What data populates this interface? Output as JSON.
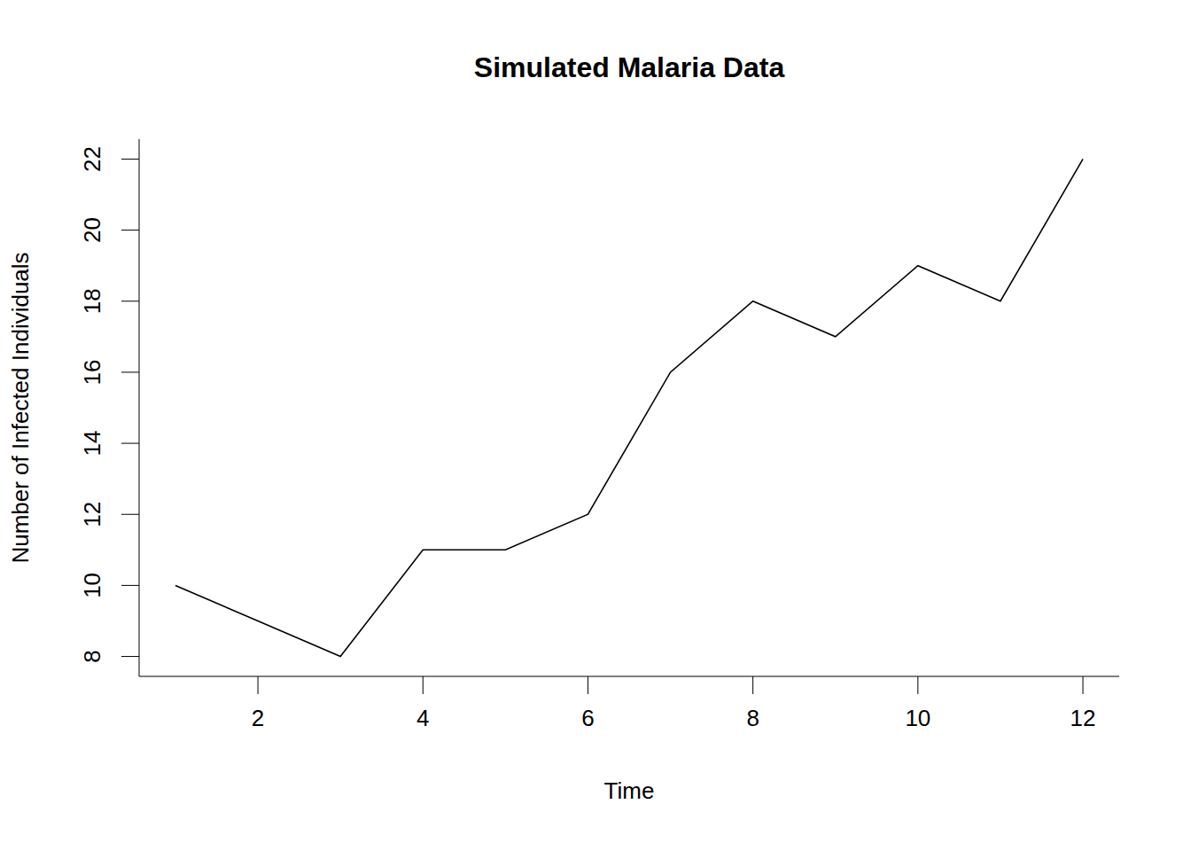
{
  "chart_data": {
    "type": "line",
    "title": "Simulated Malaria Data",
    "x_label": "Time",
    "y_label": "Number of Infected Individuals",
    "x": [
      1,
      2,
      3,
      4,
      5,
      6,
      7,
      8,
      9,
      10,
      11,
      12
    ],
    "values": [
      10,
      9,
      8,
      11,
      11,
      12,
      16,
      18,
      17,
      19,
      18,
      22
    ],
    "color": "#000000",
    "xlim": [
      0.56,
      12.44
    ],
    "ylim": [
      7.44,
      22.56
    ],
    "xticks": [
      2,
      4,
      6,
      8,
      10,
      12
    ],
    "yticks": [
      8,
      10,
      12,
      14,
      16,
      18,
      20,
      22
    ],
    "grid": false
  }
}
